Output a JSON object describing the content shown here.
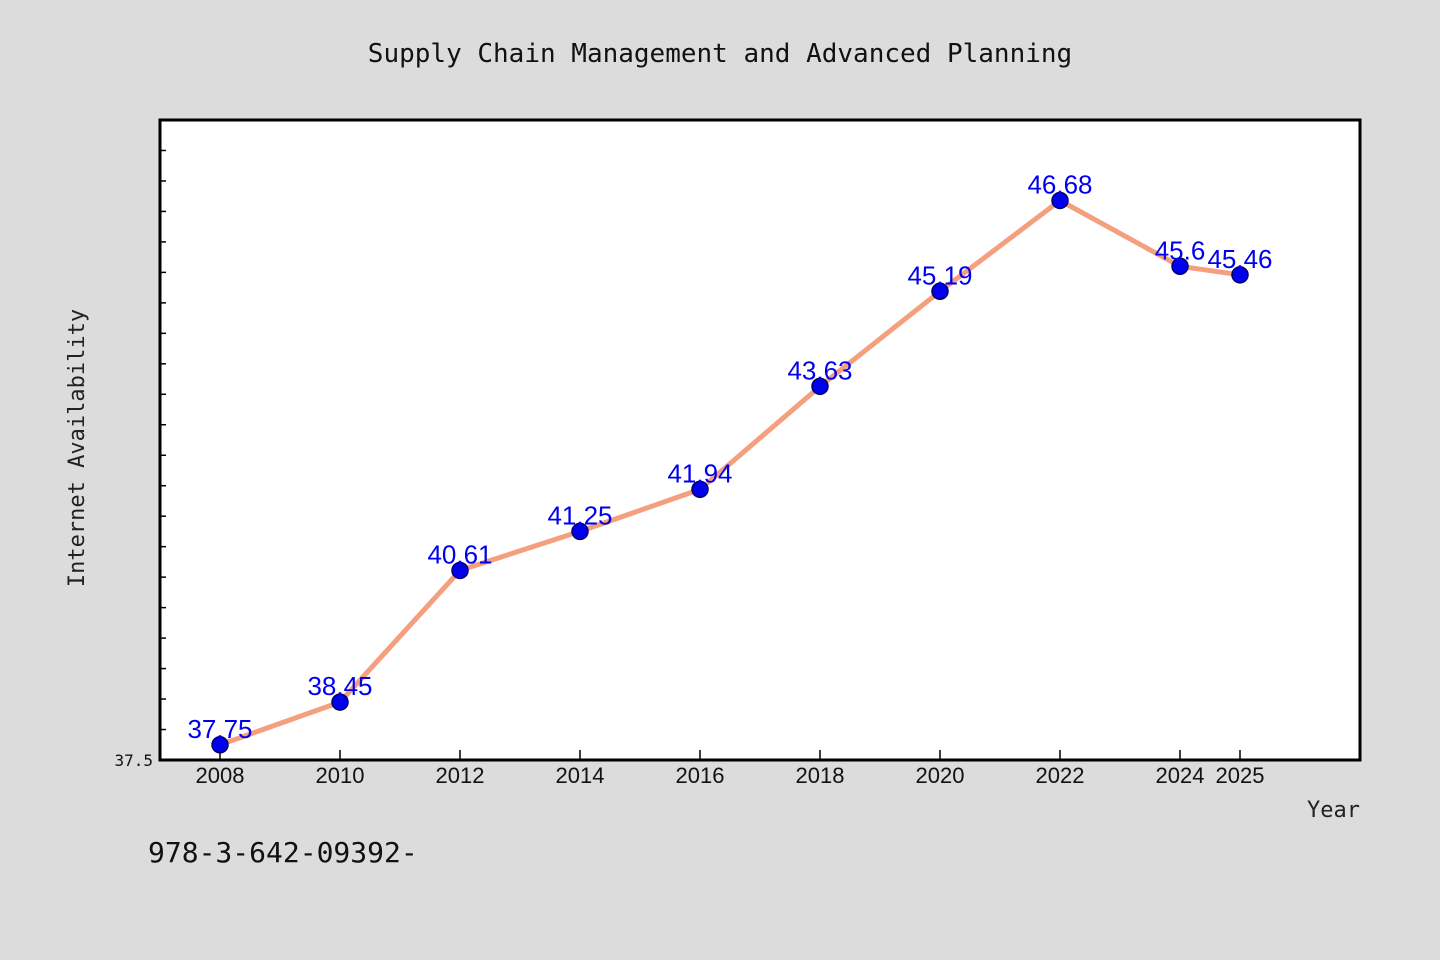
{
  "chart_data": {
    "type": "line",
    "title": "Supply Chain Management and Advanced Planning",
    "xlabel": "Year",
    "ylabel": "Internet Availability",
    "x": [
      "2008",
      "2010",
      "2012",
      "2014",
      "2016",
      "2018",
      "2020",
      "2022",
      "2024",
      "2025"
    ],
    "series": [
      {
        "values": [
          37.75,
          38.45,
          40.61,
          41.25,
          41.94,
          43.63,
          45.19,
          46.68,
          45.6,
          45.46
        ],
        "labels": [
          "37.75",
          "38.45",
          "40.61",
          "41.25",
          "41.94",
          "43.63",
          "45.19",
          "46.68",
          "45.6",
          "45.46"
        ],
        "color": "#f4a07f",
        "marker_color": "#0000ee"
      }
    ],
    "y_tick_labels": [
      "37.5"
    ],
    "ylim": [
      37.5,
      48.0
    ],
    "grid": false,
    "label_color": "#0000ee"
  },
  "footer": {
    "isbn": "978-3-642-09392-"
  }
}
